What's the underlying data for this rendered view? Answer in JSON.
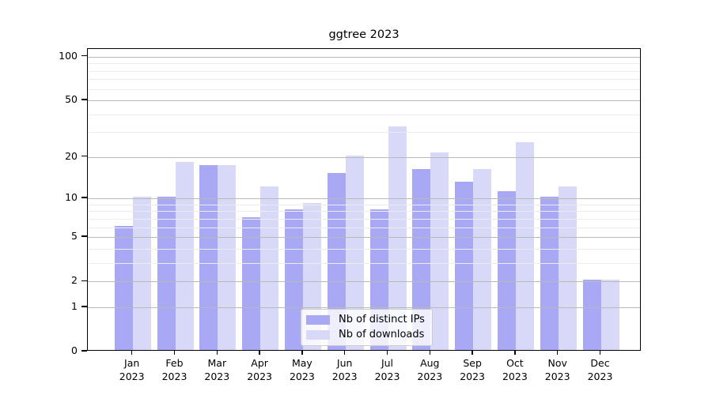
{
  "title": "ggtree 2023",
  "chart_data": {
    "type": "bar",
    "title": "ggtree 2023",
    "scale": "log1p",
    "grid": true,
    "legend_position": "lower center",
    "months": [
      "Jan",
      "Feb",
      "Mar",
      "Apr",
      "May",
      "Jun",
      "Jul",
      "Aug",
      "Sep",
      "Oct",
      "Nov",
      "Dec"
    ],
    "year": "2023",
    "categories": [
      "Jan 2023",
      "Feb 2023",
      "Mar 2023",
      "Apr 2023",
      "May 2023",
      "Jun 2023",
      "Jul 2023",
      "Aug 2023",
      "Sep 2023",
      "Oct 2023",
      "Nov 2023",
      "Dec 2023"
    ],
    "series": [
      {
        "name": "Nb of distinct IPs",
        "color": "#a8a8f4",
        "values": [
          6,
          10,
          17,
          7,
          8,
          15,
          8,
          16,
          13,
          11,
          10,
          2
        ]
      },
      {
        "name": "Nb of downloads",
        "color": "#d8d8f8",
        "values": [
          10,
          18,
          17,
          12,
          9,
          20,
          32,
          21,
          16,
          25,
          12,
          2
        ]
      }
    ],
    "y_ticks": [
      0,
      1,
      2,
      5,
      10,
      20,
      50,
      100
    ],
    "y_minor_ticks": [
      3,
      4,
      6,
      7,
      8,
      9,
      30,
      40,
      60,
      70,
      80,
      90
    ],
    "ylim": [
      0,
      113
    ],
    "xlabel": "",
    "ylabel": ""
  },
  "colors": {
    "grid_major": "#b9b9b9",
    "grid_minor": "#ececec",
    "axis": "#000000",
    "background": "#ffffff"
  }
}
